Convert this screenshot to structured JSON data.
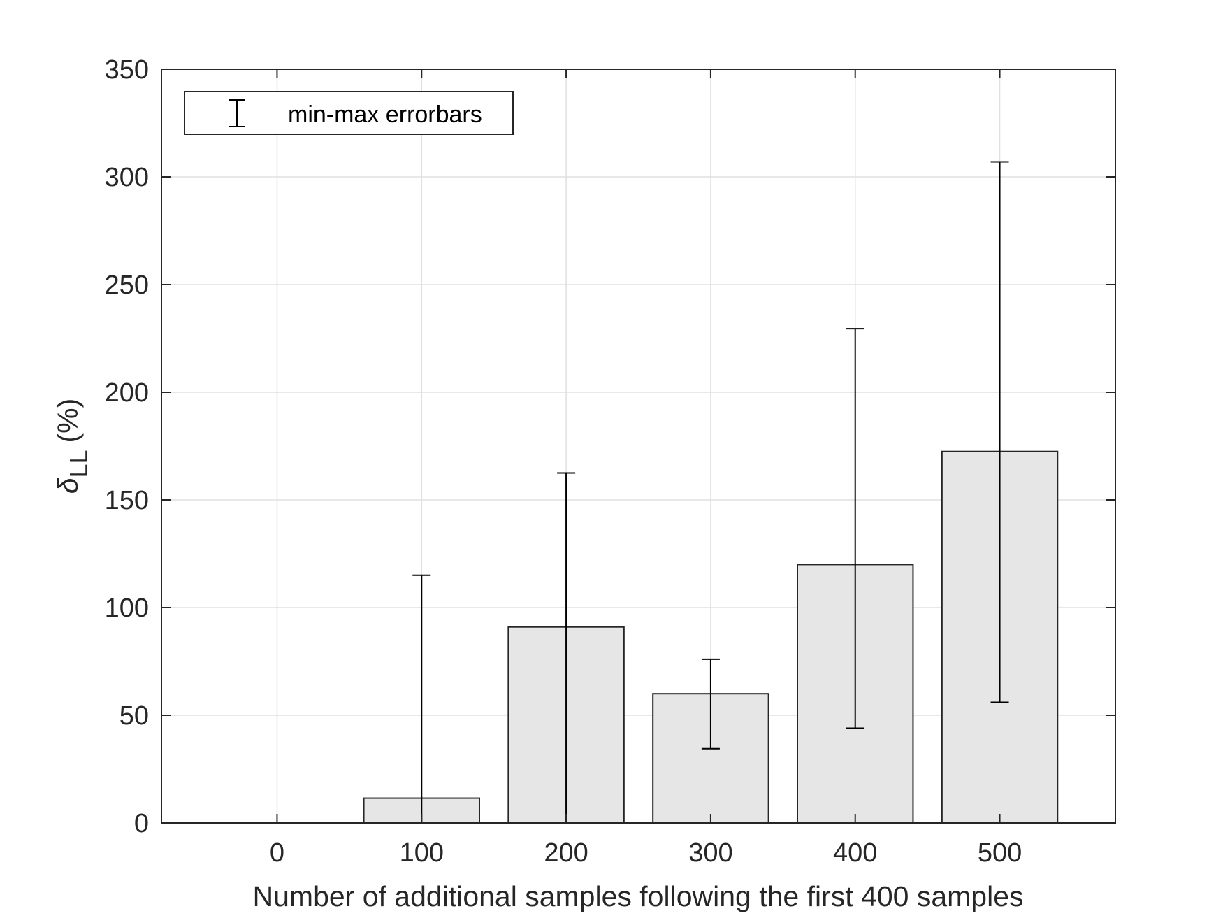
{
  "chart_data": {
    "type": "bar",
    "categories": [
      "0",
      "100",
      "200",
      "300",
      "400",
      "500"
    ],
    "x": [
      0,
      100,
      200,
      300,
      400,
      500
    ],
    "values": [
      0,
      11.5,
      91,
      60,
      120,
      172.5
    ],
    "error_min": [
      0,
      0,
      0,
      34.5,
      44,
      56
    ],
    "error_max": [
      0,
      115,
      162.5,
      76,
      229.5,
      307
    ],
    "xlabel": "Number of additional samples following the first 400 samples",
    "ylabel_symbol": "δ",
    "ylabel_subscript": "LL",
    "ylabel_unit": "(%)",
    "xlim": [
      -80,
      580
    ],
    "ylim": [
      0,
      350
    ],
    "xticks": [
      0,
      100,
      200,
      300,
      400,
      500
    ],
    "yticks": [
      0,
      50,
      100,
      150,
      200,
      250,
      300,
      350
    ],
    "grid": true,
    "legend": {
      "position": "top-left",
      "entries": [
        "min-max errorbars"
      ]
    },
    "bar_color": "#e6e6e6",
    "edge_color": "#262626",
    "grid_color": "#e0e0e0"
  }
}
